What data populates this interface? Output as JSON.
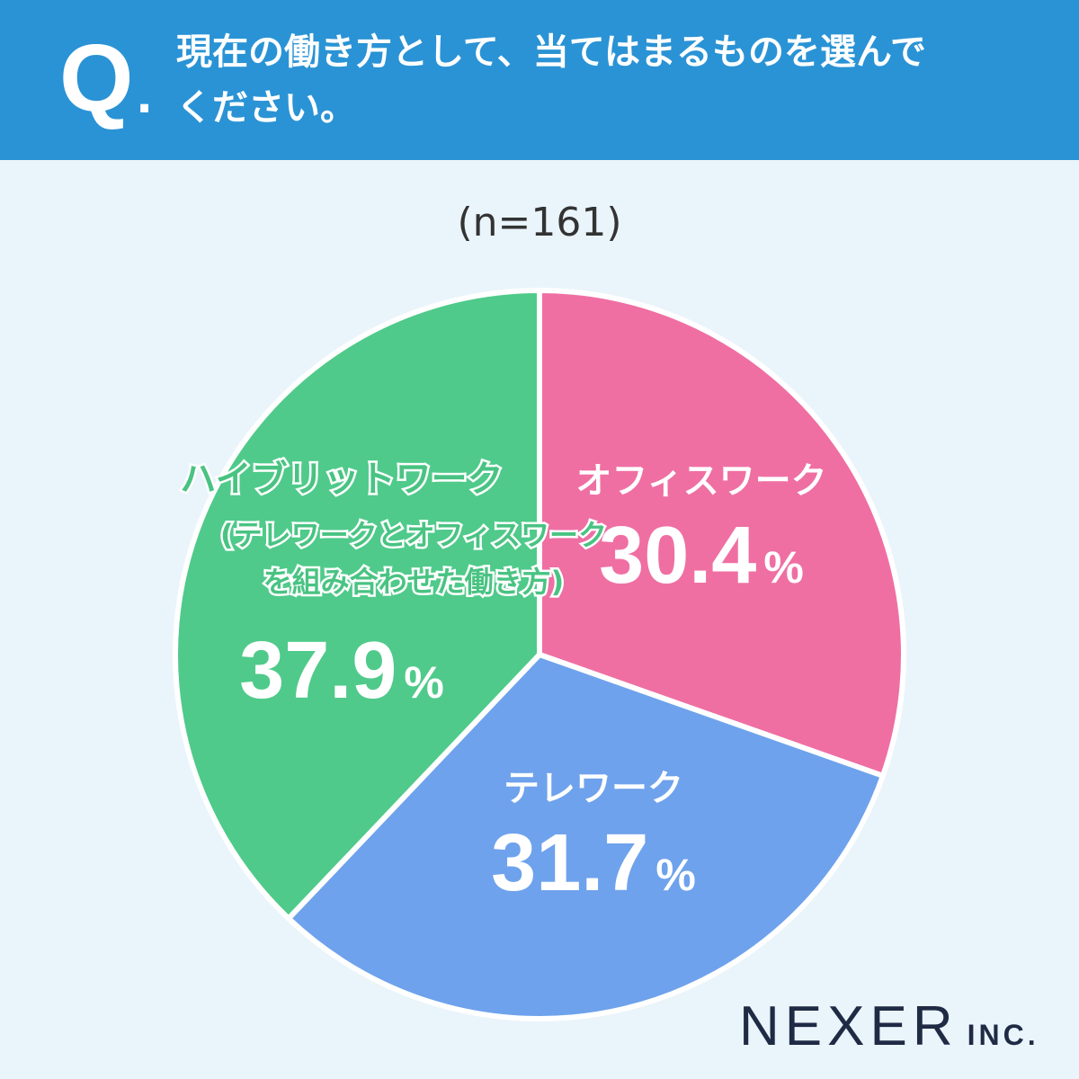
{
  "question": {
    "mark": "Q",
    "dot": ".",
    "line1": "現在の働き方として、当てはまるものを選んで",
    "line2": "ください。"
  },
  "sample_size": "(n=161)",
  "colors": {
    "header": "#2a93d5",
    "background": "#eaf4fb",
    "office": "#ef6fa3",
    "tele": "#6ea2ec",
    "hybrid": "#4fca8a",
    "hybrid_label": "#49c382"
  },
  "chart_data": {
    "type": "pie",
    "start_angle_deg": 0,
    "direction": "clockwise",
    "slices": [
      {
        "key": "office",
        "label": "オフィスワーク",
        "value": 30.4,
        "display": "30.4",
        "unit": "%"
      },
      {
        "key": "tele",
        "label": "テレワーク",
        "value": 31.7,
        "display": "31.7",
        "unit": "%"
      },
      {
        "key": "hybrid",
        "label": "ハイブリットワーク",
        "sublabel_line1": "(テレワークとオフィスワーク",
        "sublabel_line2": "を組み合わせた働き方)",
        "value": 37.9,
        "display": "37.9",
        "unit": "%"
      }
    ]
  },
  "logo": {
    "main": "NEXER",
    "suffix": "INC."
  }
}
